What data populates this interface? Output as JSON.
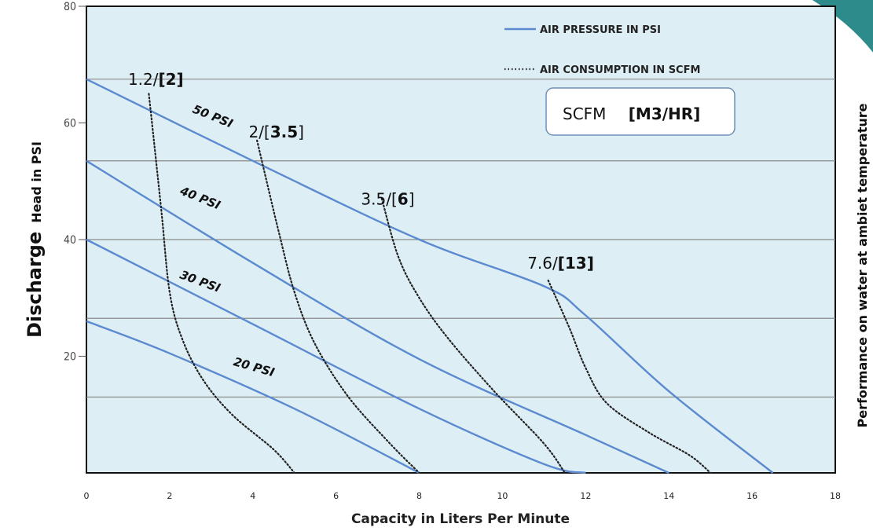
{
  "chart_data": {
    "type": "line",
    "xlabel": "Capacity in Liters Per Minute",
    "ylabel_bold": "Discharge",
    "ylabel_rest": "Head in PSI",
    "right_label": "Performance on water at ambiet temperature",
    "xlim": [
      0,
      18
    ],
    "ylim": [
      0,
      80
    ],
    "x_ticks": [
      "0",
      "2",
      "4",
      "6",
      "8",
      "10",
      "12",
      "14",
      "16",
      "18"
    ],
    "y_ticks": [
      "80",
      "60",
      "40",
      "20"
    ],
    "grid": "horizontal",
    "legend": [
      {
        "label": "AIR PRESSURE IN PSI",
        "style": "solid"
      },
      {
        "label": "AIR CONSUMPTION IN SCFM",
        "style": "dotted"
      }
    ],
    "units_box": {
      "text": "SCFM",
      "bold": "[M3/HR]"
    },
    "colors": {
      "plot_bg": "#ddeef4",
      "pressure": "#5b8ad0",
      "consumption": "#222222",
      "teal_corner": "#2e8b8b"
    },
    "pressure_series": [
      {
        "name": "50 PSI",
        "x": [
          0,
          4,
          8,
          11,
          12,
          14,
          16.5
        ],
        "y": [
          67.5,
          53.5,
          40,
          32,
          27,
          14,
          0
        ]
      },
      {
        "name": "40 PSI",
        "x": [
          0,
          4,
          8,
          12,
          14
        ],
        "y": [
          53.5,
          36,
          19.5,
          6.5,
          0
        ]
      },
      {
        "name": "30 PSI",
        "x": [
          0,
          4,
          8,
          11,
          12
        ],
        "y": [
          40,
          25.5,
          11,
          1.5,
          0
        ]
      },
      {
        "name": "20 PSI",
        "x": [
          0,
          2,
          5,
          8
        ],
        "y": [
          26,
          20.5,
          11,
          0
        ]
      }
    ],
    "consumption_series": [
      {
        "name": "1.2/[2]",
        "label_main": "1.2/",
        "label_bold": "[2]",
        "x": [
          1.5,
          1.8,
          2.0,
          2.3,
          2.8,
          3.5,
          4.5,
          5
        ],
        "y": [
          65,
          45,
          31,
          23,
          16,
          10,
          4,
          0
        ]
      },
      {
        "name": "2/[3.5]",
        "label_main": "2/[",
        "label_bold": "3.5",
        "label_end": "]",
        "x": [
          4.1,
          4.6,
          5.0,
          5.5,
          6.3,
          7.3,
          8
        ],
        "y": [
          57,
          42,
          31,
          22,
          13,
          5,
          0
        ]
      },
      {
        "name": "3.5/[6]",
        "label_main": "3.5/[",
        "label_bold": "6",
        "label_end": "]",
        "x": [
          7.1,
          7.5,
          8.0,
          8.7,
          9.8,
          11,
          11.5
        ],
        "y": [
          47,
          37,
          30,
          23,
          14,
          5,
          0
        ]
      },
      {
        "name": "7.6/[13]",
        "label_main": "7.6/",
        "label_bold": "[13]",
        "x": [
          11.1,
          11.6,
          12.0,
          12.5,
          13.5,
          14.5,
          15
        ],
        "y": [
          33,
          25,
          18,
          12,
          7,
          3,
          0
        ]
      }
    ]
  }
}
